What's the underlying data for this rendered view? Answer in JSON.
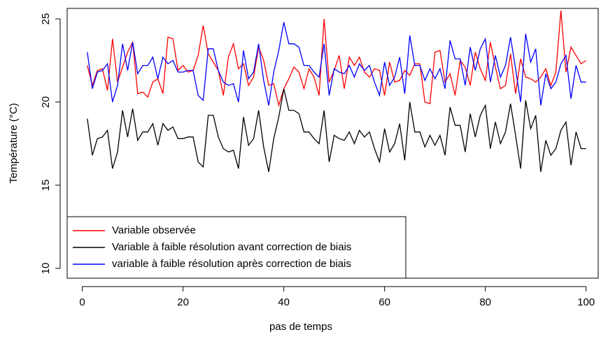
{
  "chart_data": {
    "type": "line",
    "xlabel": "pas de temps",
    "ylabel": "Température (°C)",
    "x": [
      1,
      2,
      3,
      4,
      5,
      6,
      7,
      8,
      9,
      10,
      11,
      12,
      13,
      14,
      15,
      16,
      17,
      18,
      19,
      20,
      21,
      22,
      23,
      24,
      25,
      26,
      27,
      28,
      29,
      30,
      31,
      32,
      33,
      34,
      35,
      36,
      37,
      38,
      39,
      40,
      41,
      42,
      43,
      44,
      45,
      46,
      47,
      48,
      49,
      50,
      51,
      52,
      53,
      54,
      55,
      56,
      57,
      58,
      59,
      60,
      61,
      62,
      63,
      64,
      65,
      66,
      67,
      68,
      69,
      70,
      71,
      72,
      73,
      74,
      75,
      76,
      77,
      78,
      79,
      80,
      81,
      82,
      83,
      84,
      85,
      86,
      87,
      88,
      89,
      90,
      91,
      92,
      93,
      94,
      95,
      96,
      97,
      98,
      99,
      100
    ],
    "series": [
      {
        "name": "Variable observée",
        "color": "#ff0000",
        "values": [
          22.2,
          21.0,
          21.9,
          22.0,
          20.7,
          23.8,
          21.2,
          22.1,
          23.0,
          23.6,
          20.5,
          20.6,
          20.3,
          21.2,
          21.4,
          20.5,
          23.9,
          23.8,
          21.9,
          22.2,
          21.8,
          21.9,
          22.8,
          24.6,
          22.9,
          22.4,
          21.9,
          20.4,
          22.7,
          23.5,
          22.0,
          22.3,
          21.0,
          21.5,
          23.3,
          22.5,
          21.0,
          21.1,
          19.8,
          20.8,
          21.4,
          22.1,
          21.8,
          20.8,
          22.0,
          21.5,
          20.4,
          25.0,
          21.2,
          21.9,
          22.8,
          20.8,
          22.7,
          22.2,
          22.7,
          21.8,
          21.5,
          22.0,
          21.9,
          20.4,
          22.4,
          21.2,
          21.3,
          21.9,
          21.6,
          22.3,
          22.3,
          20.0,
          19.9,
          23.0,
          23.1,
          21.2,
          21.7,
          20.4,
          22.5,
          22.1,
          21.0,
          23.0,
          22.0,
          21.3,
          23.6,
          22.1,
          20.8,
          21.0,
          22.9,
          20.5,
          22.6,
          21.5,
          21.4,
          21.2,
          21.5,
          22.0,
          21.0,
          21.8,
          25.5,
          21.8,
          23.3,
          22.8,
          22.3,
          22.5
        ]
      },
      {
        "name": "Variable à faible résolution avant correction de biais",
        "color": "#000000",
        "values": [
          19.0,
          16.8,
          17.8,
          17.9,
          18.3,
          16.0,
          17.0,
          19.5,
          17.9,
          19.6,
          17.7,
          18.2,
          18.2,
          18.7,
          17.4,
          18.7,
          18.3,
          18.5,
          17.8,
          17.8,
          17.9,
          17.9,
          16.4,
          16.1,
          19.2,
          19.2,
          17.9,
          17.2,
          17.0,
          17.1,
          16.0,
          19.1,
          17.4,
          17.8,
          19.5,
          17.3,
          15.8,
          17.8,
          19.1,
          20.8,
          19.5,
          19.5,
          19.3,
          18.2,
          18.2,
          17.8,
          17.5,
          19.5,
          16.4,
          18.0,
          17.8,
          17.7,
          18.2,
          17.5,
          18.3,
          17.9,
          18.2,
          17.2,
          16.4,
          18.4,
          17.0,
          17.5,
          18.7,
          16.5,
          20.0,
          18.2,
          18.2,
          17.3,
          18.0,
          17.4,
          18.0,
          16.8,
          19.7,
          18.6,
          18.6,
          17.0,
          19.3,
          17.9,
          19.2,
          19.8,
          17.2,
          18.8,
          17.5,
          18.2,
          19.9,
          18.0,
          16.0,
          20.1,
          18.4,
          19.2,
          15.8,
          17.7,
          16.8,
          17.2,
          18.3,
          18.8,
          16.2,
          18.2,
          17.2,
          17.2
        ]
      },
      {
        "name": "variable à faible résolution après correction de biais",
        "color": "#0000ff",
        "values": [
          23.0,
          20.8,
          21.8,
          21.9,
          22.3,
          20.0,
          21.0,
          23.5,
          21.9,
          23.6,
          21.7,
          22.2,
          22.2,
          22.7,
          21.4,
          22.7,
          22.3,
          22.5,
          21.8,
          21.8,
          21.9,
          21.9,
          20.4,
          20.1,
          23.2,
          23.2,
          21.9,
          21.2,
          21.0,
          21.1,
          20.0,
          23.1,
          21.4,
          21.8,
          23.5,
          21.3,
          19.8,
          21.8,
          23.1,
          24.8,
          23.5,
          23.5,
          23.3,
          22.2,
          22.2,
          21.8,
          21.5,
          23.5,
          20.4,
          22.0,
          21.8,
          21.7,
          22.2,
          21.5,
          22.3,
          21.9,
          22.2,
          21.2,
          20.4,
          22.4,
          21.0,
          21.5,
          22.7,
          20.5,
          24.0,
          22.2,
          22.2,
          21.3,
          22.0,
          21.4,
          22.0,
          20.8,
          23.7,
          22.6,
          22.6,
          21.0,
          23.3,
          21.9,
          23.2,
          23.8,
          21.2,
          22.8,
          21.5,
          22.2,
          23.9,
          22.0,
          20.0,
          24.1,
          22.4,
          23.2,
          19.8,
          21.7,
          20.8,
          21.2,
          22.3,
          22.8,
          20.2,
          22.2,
          21.2,
          21.2
        ]
      }
    ],
    "xlim": [
      -3,
      102.4
    ],
    "xticks": [
      0,
      20,
      40,
      60,
      80,
      100
    ],
    "ylim": [
      9.41,
      25.63
    ],
    "yticks": [
      10,
      15,
      20,
      25
    ],
    "legend": "bottomleft"
  }
}
